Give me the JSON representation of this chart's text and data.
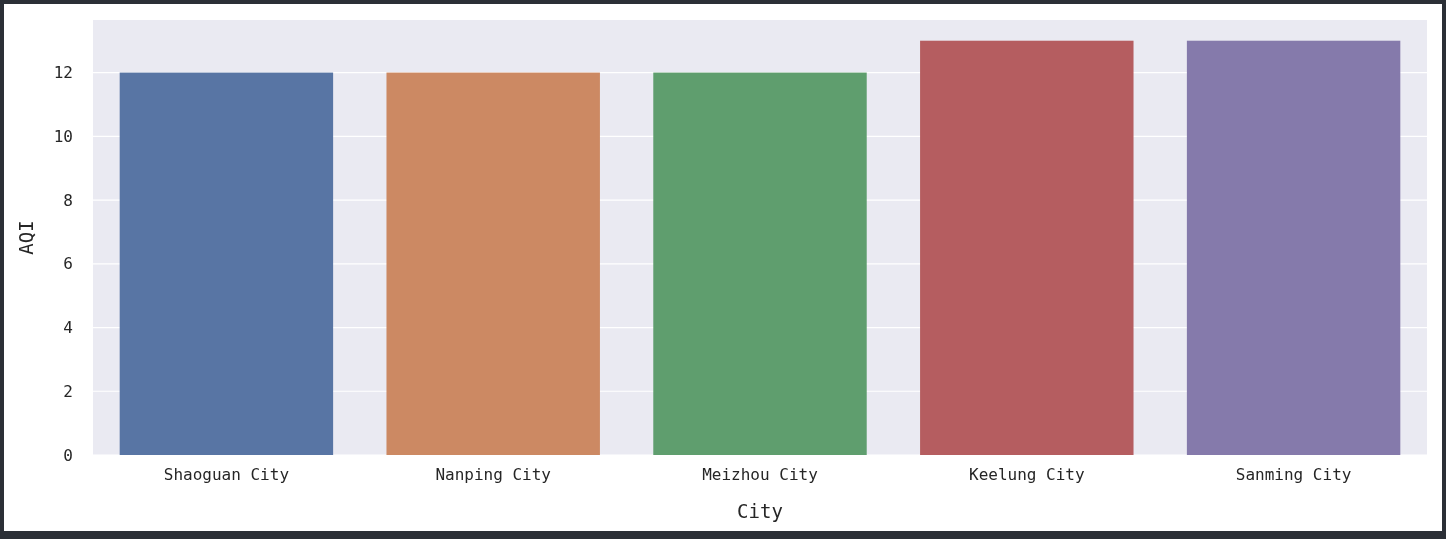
{
  "chart_data": {
    "type": "bar",
    "xlabel": "City",
    "ylabel": "AQI",
    "categories": [
      "Shaoguan City",
      "Nanping City",
      "Meizhou City",
      "Keelung City",
      "Sanming City"
    ],
    "values": [
      12,
      12,
      12,
      13,
      13
    ],
    "colors": [
      "#5875a4",
      "#cc8963",
      "#5f9e6e",
      "#b55d60",
      "#857aab"
    ],
    "ylim": [
      0,
      13.65
    ],
    "yticks": [
      0,
      2,
      4,
      6,
      8,
      10,
      12
    ],
    "grid": "y"
  }
}
